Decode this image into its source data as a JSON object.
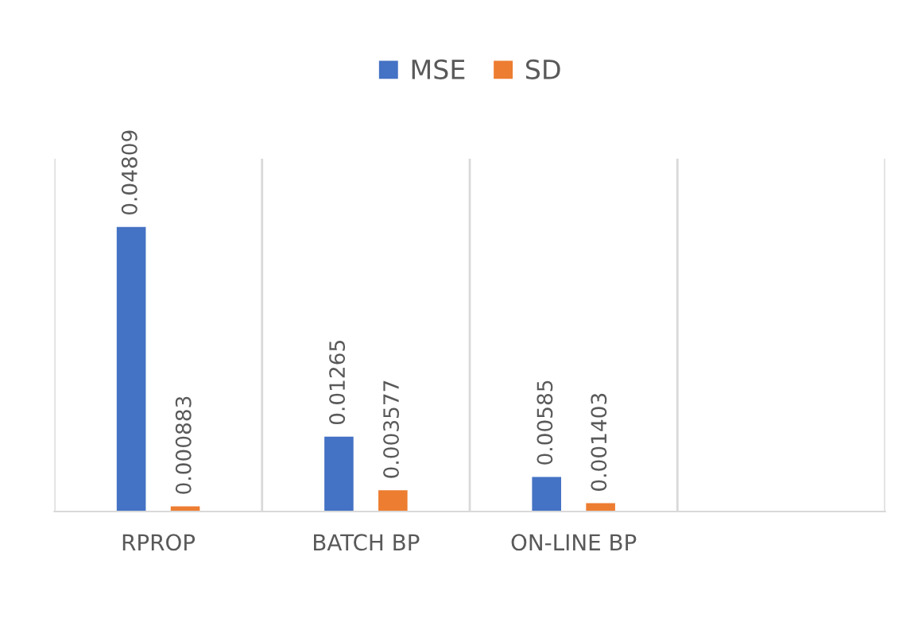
{
  "chart_data": {
    "type": "bar",
    "categories": [
      "RPROP",
      "BATCH BP",
      "ON-LINE BP",
      null
    ],
    "series": [
      {
        "name": "MSE",
        "color": "#4472c4",
        "values": [
          0.04809,
          0.01265,
          0.00585,
          null
        ]
      },
      {
        "name": "SD",
        "color": "#ed7d31",
        "values": [
          0.000883,
          0.003577,
          0.001403,
          null
        ]
      }
    ],
    "data_labels": true,
    "grid": "x",
    "legend": "top"
  }
}
